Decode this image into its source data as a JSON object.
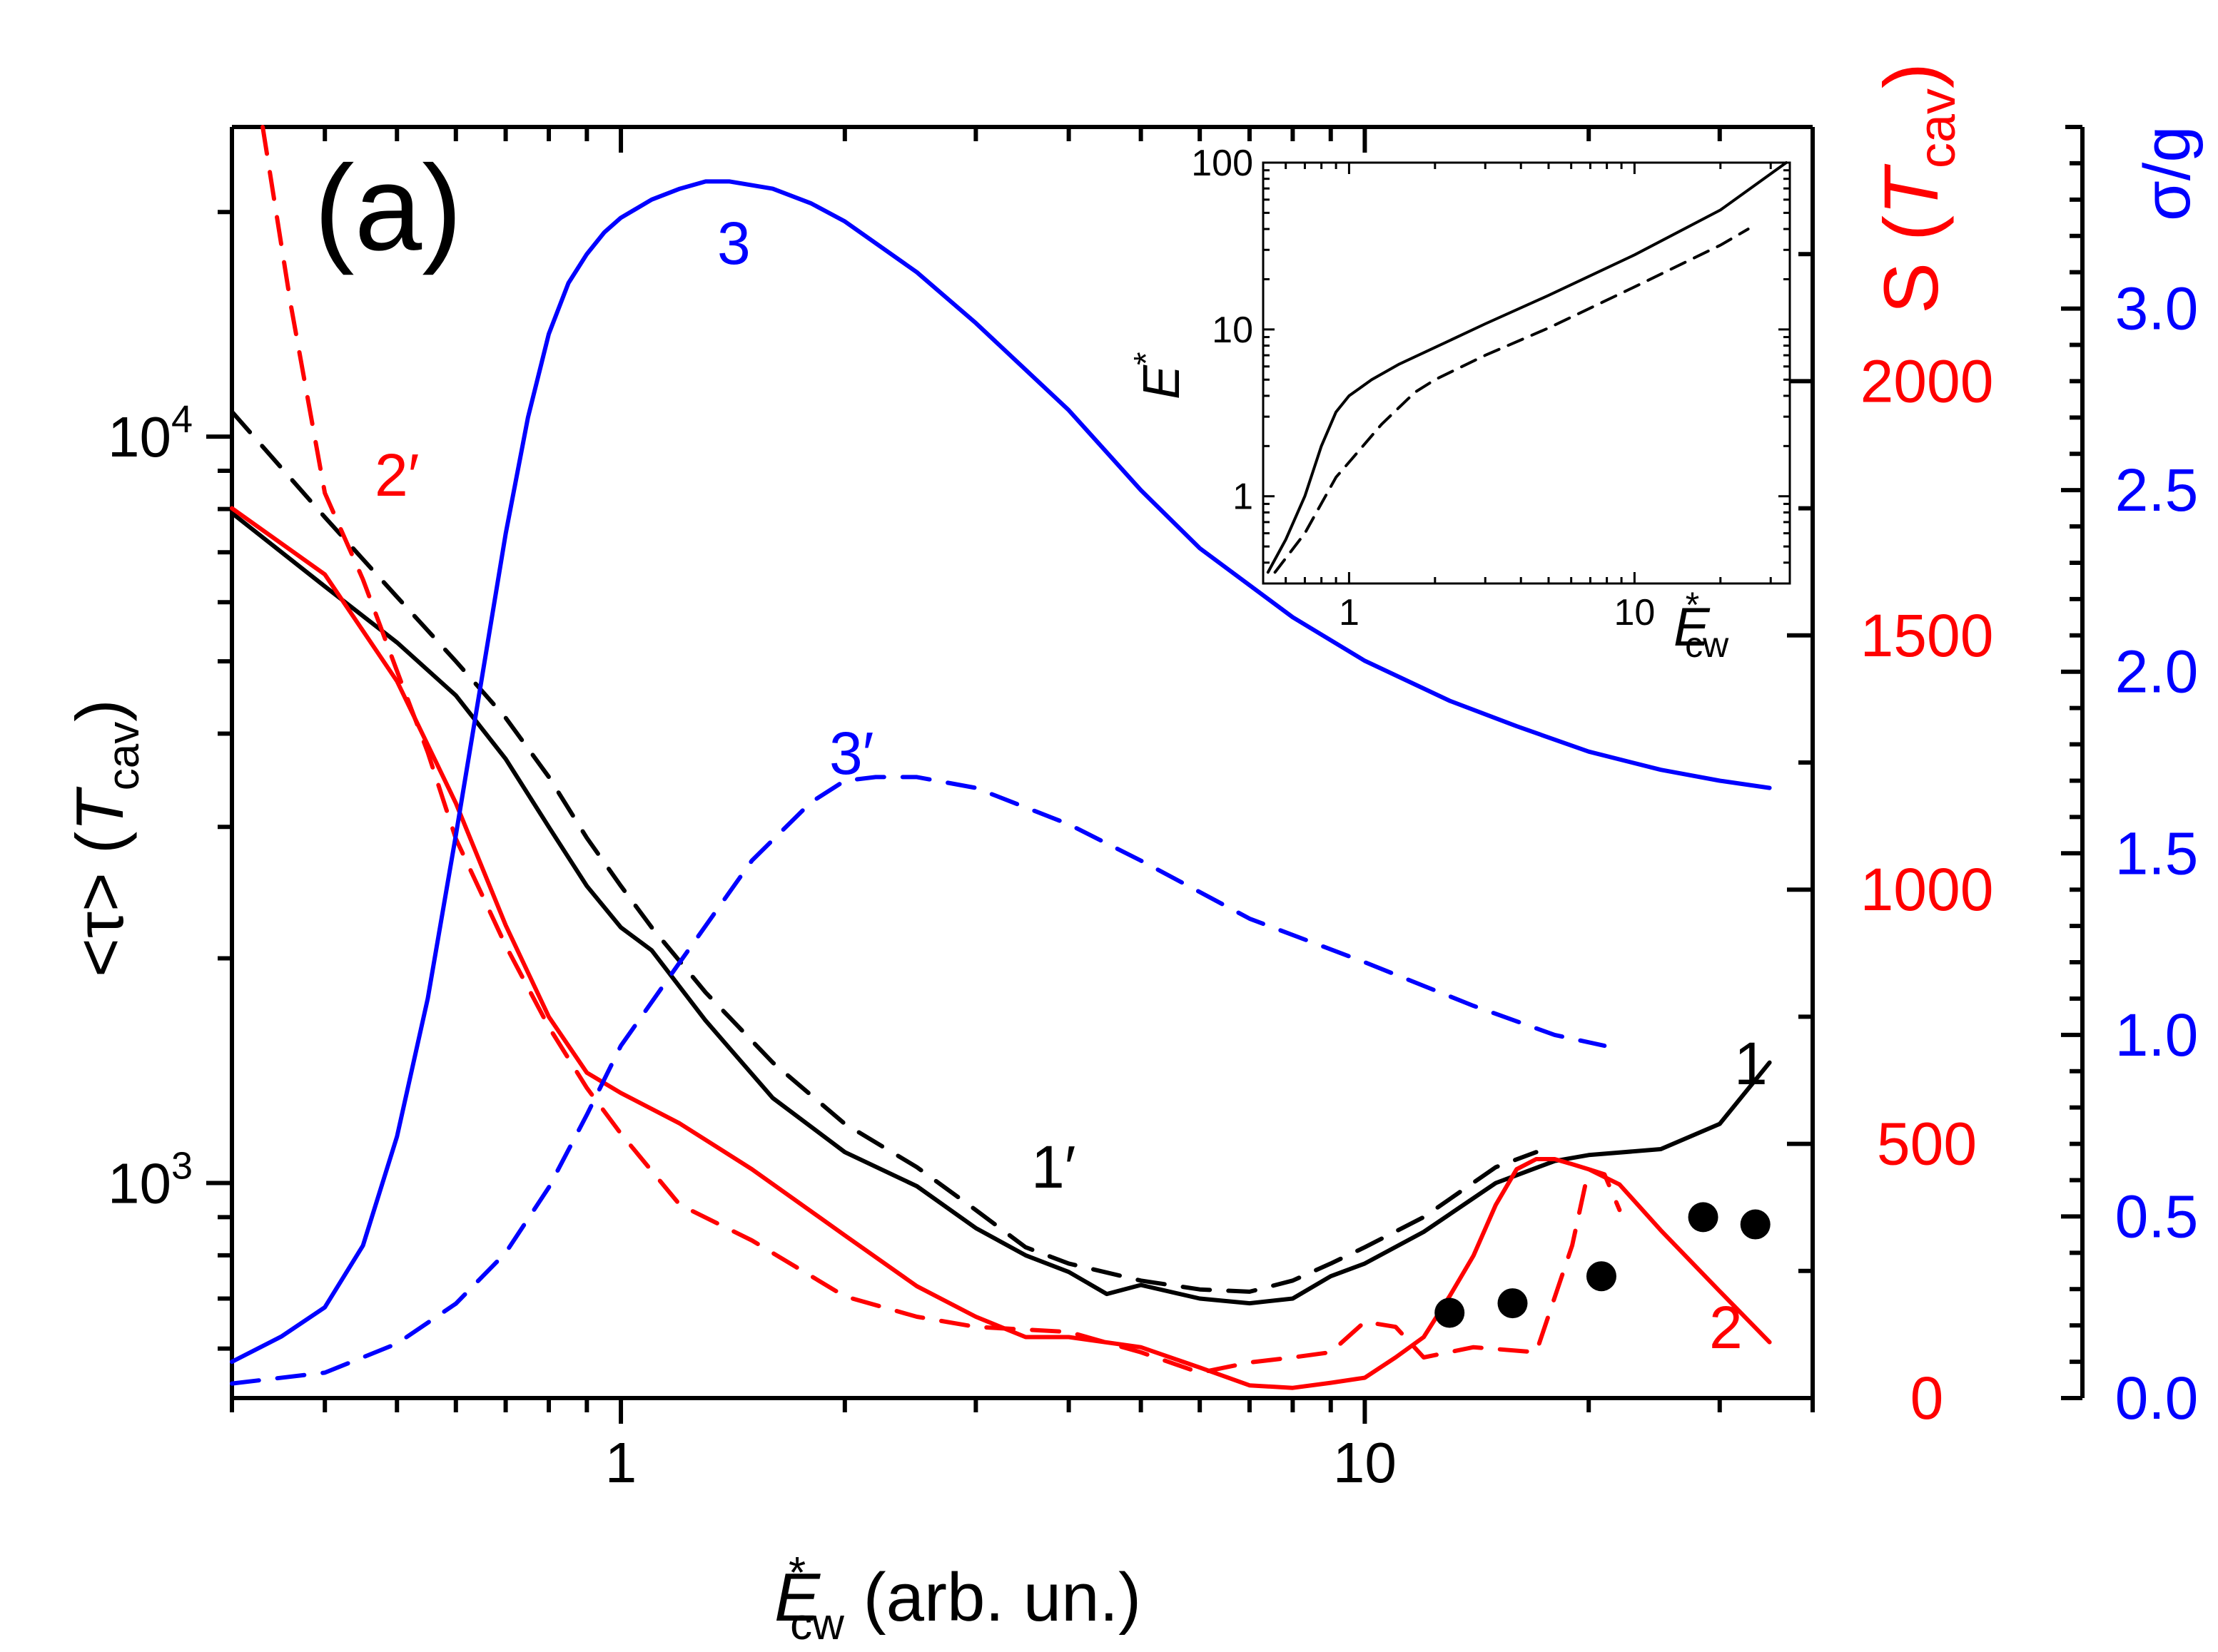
{
  "colors": {
    "black": "#000000",
    "red": "#ff0000",
    "blue": "#0000ff"
  },
  "panel_label": "(a)",
  "chart_data": {
    "type": "line",
    "x_scale": "log",
    "xlim": [
      0.3,
      40
    ],
    "xlabel": {
      "main": "E",
      "sup": "*",
      "sub": "cw",
      "rest": " (arb. un.)"
    },
    "x_ticks": [
      {
        "v": 1,
        "label": "1"
      },
      {
        "v": 10,
        "label": "10"
      }
    ],
    "axes": {
      "left": {
        "scale": "log",
        "ylim": [
          515,
          26000
        ],
        "label": {
          "pre": "<τ> (",
          "main": "T",
          "sub": "cav",
          "post": ")"
        },
        "ticks": [
          {
            "v": 1000,
            "label": "10",
            "exp": "3"
          },
          {
            "v": 10000,
            "label": "10",
            "exp": "4"
          }
        ],
        "color": "#000000"
      },
      "right1": {
        "scale": "linear",
        "ylim": [
          0,
          2500
        ],
        "label": {
          "pre": "S (",
          "main": "T",
          "sub": "cav",
          "post": ")"
        },
        "ticks": [
          {
            "v": 0,
            "label": "0"
          },
          {
            "v": 500,
            "label": "500"
          },
          {
            "v": 1000,
            "label": "1000"
          },
          {
            "v": 1500,
            "label": "1500"
          },
          {
            "v": 2000,
            "label": "2000"
          }
        ],
        "color": "#ff0000"
      },
      "right2": {
        "scale": "linear",
        "ylim": [
          0,
          3.5
        ],
        "label": "σ/g",
        "ticks": [
          {
            "v": 0,
            "label": "0.0"
          },
          {
            "v": 0.5,
            "label": "0.5"
          },
          {
            "v": 1.0,
            "label": "1.0"
          },
          {
            "v": 1.5,
            "label": "1.5"
          },
          {
            "v": 2.0,
            "label": "2.0"
          },
          {
            "v": 2.5,
            "label": "2.5"
          },
          {
            "v": 3.0,
            "label": "3.0"
          }
        ],
        "color": "#0000ff"
      }
    },
    "series": [
      {
        "name": "1",
        "axis": "left",
        "color": "#000000",
        "dash": false,
        "x": [
          0.3,
          0.4,
          0.5,
          0.6,
          0.7,
          0.8,
          0.9,
          1.0,
          1.1,
          1.3,
          1.6,
          2.0,
          2.5,
          3.0,
          3.5,
          4.0,
          4.5,
          5.0,
          6.0,
          7.0,
          8.0,
          9.0,
          10,
          12,
          15,
          18,
          20,
          25,
          30,
          35
        ],
        "y": [
          7900,
          6300,
          5300,
          4500,
          3700,
          3000,
          2500,
          2200,
          2050,
          1650,
          1300,
          1100,
          990,
          870,
          800,
          760,
          710,
          730,
          700,
          690,
          700,
          750,
          780,
          860,
          1000,
          1070,
          1090,
          1110,
          1200,
          1450
        ]
      },
      {
        "name": "1′",
        "axis": "left",
        "color": "#000000",
        "dash": true,
        "x": [
          0.3,
          0.4,
          0.5,
          0.6,
          0.7,
          0.8,
          0.9,
          1.0,
          1.1,
          1.3,
          1.6,
          2.0,
          2.5,
          3.0,
          3.5,
          4.0,
          5.0,
          6.0,
          7.0,
          8.0,
          9.0,
          10,
          12,
          15,
          17
        ],
        "y": [
          10800,
          7800,
          6100,
          5000,
          4200,
          3500,
          2900,
          2500,
          2200,
          1800,
          1450,
          1200,
          1050,
          920,
          820,
          780,
          740,
          720,
          715,
          740,
          780,
          820,
          900,
          1050,
          1100
        ]
      },
      {
        "name": "2",
        "axis": "right1",
        "color": "#ff0000",
        "dash": false,
        "x": [
          0.3,
          0.4,
          0.5,
          0.6,
          0.7,
          0.8,
          0.9,
          1.0,
          1.2,
          1.5,
          2.0,
          2.5,
          3.0,
          3.5,
          4.0,
          5.0,
          6.0,
          7.0,
          8.0,
          9.0,
          10,
          11,
          12,
          13,
          14,
          15,
          16,
          17,
          18,
          19,
          20,
          22,
          25,
          30,
          35
        ],
        "y": [
          1750,
          1620,
          1410,
          1170,
          930,
          750,
          640,
          600,
          540,
          450,
          320,
          220,
          160,
          120,
          120,
          100,
          60,
          25,
          20,
          30,
          40,
          80,
          120,
          200,
          280,
          380,
          450,
          470,
          470,
          460,
          450,
          420,
          330,
          210,
          110
        ]
      },
      {
        "name": "2′",
        "axis": "right1",
        "color": "#ff0000",
        "dash": true,
        "x": [
          0.33,
          0.36,
          0.4,
          0.45,
          0.5,
          0.55,
          0.6,
          0.7,
          0.8,
          0.9,
          1.0,
          1.2,
          1.5,
          2.0,
          2.5,
          3.0,
          4.0,
          5.0,
          6.0,
          7.0,
          8.0,
          9.0,
          10,
          11,
          12,
          14,
          17,
          19,
          20,
          21,
          22
        ],
        "y": [
          2500,
          2150,
          1780,
          1610,
          1430,
          1270,
          1100,
          890,
          730,
          610,
          520,
          380,
          310,
          200,
          160,
          140,
          130,
          90,
          50,
          70,
          80,
          90,
          150,
          140,
          80,
          100,
          90,
          300,
          450,
          440,
          370
        ]
      },
      {
        "name": "3",
        "axis": "right2",
        "color": "#0000ff",
        "dash": false,
        "x": [
          0.3,
          0.35,
          0.4,
          0.45,
          0.5,
          0.55,
          0.6,
          0.65,
          0.7,
          0.75,
          0.8,
          0.85,
          0.9,
          0.95,
          1.0,
          1.1,
          1.2,
          1.3,
          1.4,
          1.6,
          1.8,
          2.0,
          2.5,
          3.0,
          4.0,
          5.0,
          6.0,
          8.0,
          10,
          13,
          16,
          20,
          25,
          30,
          35
        ],
        "y": [
          0.1,
          0.17,
          0.25,
          0.42,
          0.72,
          1.1,
          1.55,
          1.98,
          2.38,
          2.7,
          2.93,
          3.07,
          3.15,
          3.21,
          3.25,
          3.3,
          3.33,
          3.35,
          3.35,
          3.33,
          3.29,
          3.24,
          3.1,
          2.96,
          2.72,
          2.5,
          2.34,
          2.15,
          2.03,
          1.92,
          1.85,
          1.78,
          1.73,
          1.7,
          1.68
        ]
      },
      {
        "name": "3′",
        "axis": "right2",
        "color": "#0000ff",
        "dash": true,
        "x": [
          0.3,
          0.4,
          0.5,
          0.6,
          0.7,
          0.8,
          0.9,
          1.0,
          1.2,
          1.5,
          1.8,
          2.0,
          2.2,
          2.5,
          3.0,
          4.0,
          5.0,
          7.0,
          10,
          14,
          18,
          21
        ],
        "y": [
          0.04,
          0.07,
          0.15,
          0.26,
          0.4,
          0.58,
          0.78,
          0.97,
          1.2,
          1.48,
          1.64,
          1.7,
          1.71,
          1.71,
          1.68,
          1.58,
          1.48,
          1.32,
          1.2,
          1.08,
          1.0,
          0.97
        ]
      }
    ],
    "scatter": {
      "name": "dots",
      "axis": "left",
      "color": "#000000",
      "x": [
        13,
        15.8,
        20.8,
        28.5,
        33.5
      ],
      "y": [
        670,
        690,
        750,
        900,
        880
      ]
    },
    "curve_labels": [
      {
        "text": "1",
        "color": "#000000"
      },
      {
        "text": "1′",
        "color": "#000000"
      },
      {
        "text": "2",
        "color": "#ff0000"
      },
      {
        "text": "2′",
        "color": "#ff0000"
      },
      {
        "text": "3",
        "color": "#0000ff"
      },
      {
        "text": "3′",
        "color": "#0000ff"
      }
    ],
    "inset": {
      "x_scale": "log",
      "y_scale": "log",
      "xlim": [
        0.5,
        35
      ],
      "ylim": [
        0.3,
        100
      ],
      "ylabel": {
        "main": "E",
        "sup": "*"
      },
      "xlabel": {
        "main": "E",
        "sup": "*",
        "sub": "cw"
      },
      "x_ticks": [
        {
          "v": 1,
          "label": "1"
        },
        {
          "v": 10,
          "label": "10"
        }
      ],
      "y_ticks": [
        {
          "v": 1,
          "label": "1"
        },
        {
          "v": 10,
          "label": "10"
        },
        {
          "v": 100,
          "label": "100"
        }
      ],
      "series": [
        {
          "name": "solid",
          "dash": false,
          "x": [
            0.52,
            0.6,
            0.7,
            0.8,
            0.9,
            1.0,
            1.2,
            1.5,
            2.0,
            3.0,
            5.0,
            10,
            20,
            34
          ],
          "y": [
            0.35,
            0.55,
            1.0,
            2.0,
            3.2,
            4.0,
            5.0,
            6.2,
            7.8,
            10.8,
            16,
            28,
            52,
            100
          ]
        },
        {
          "name": "dashed",
          "dash": true,
          "x": [
            0.55,
            0.7,
            0.9,
            1.0,
            1.3,
            1.7,
            2.0,
            3.0,
            5.0,
            10,
            20,
            25
          ],
          "y": [
            0.35,
            0.6,
            1.3,
            1.6,
            2.7,
            4.2,
            5.0,
            7.0,
            10.2,
            18,
            32,
            40
          ]
        }
      ]
    }
  }
}
